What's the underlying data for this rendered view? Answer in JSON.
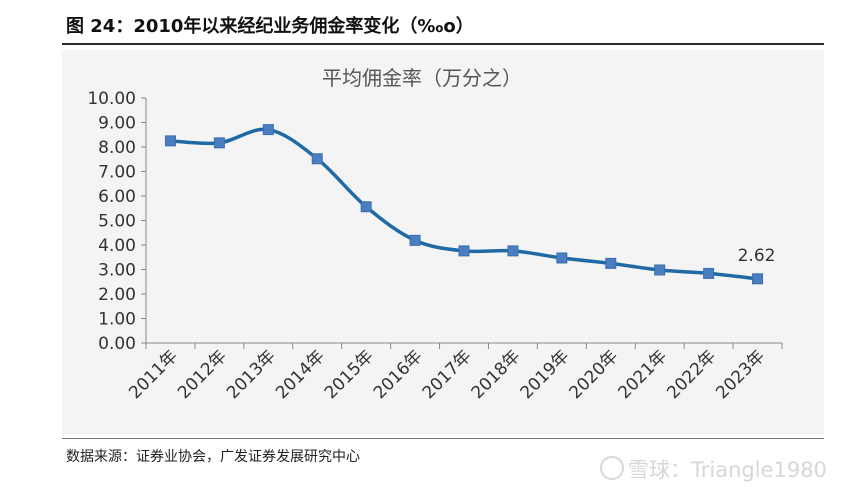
{
  "figure": {
    "title": "图 24：2010年以来经纪业务佣金率变化（‰o）",
    "source": "数据来源：证券业协会，广发证券发展研究中心",
    "watermark": "雪球：Triangle1980"
  },
  "chart_data": {
    "type": "line",
    "title": "平均佣金率（万分之）",
    "categories": [
      "2011年",
      "2012年",
      "2013年",
      "2014年",
      "2015年",
      "2016年",
      "2017年",
      "2018年",
      "2019年",
      "2020年",
      "2021年",
      "2022年",
      "2023年"
    ],
    "series": [
      {
        "values": [
          8.25,
          8.17,
          8.71,
          7.52,
          5.56,
          4.19,
          3.76,
          3.76,
          3.47,
          3.25,
          2.98,
          2.84,
          2.62
        ]
      }
    ],
    "data_labels": [
      {
        "category": "2023年",
        "text": "2.62"
      }
    ],
    "ylim": [
      0,
      10
    ],
    "y_ticks": [
      "0.00",
      "1.00",
      "2.00",
      "3.00",
      "4.00",
      "5.00",
      "6.00",
      "7.00",
      "8.00",
      "9.00",
      "10.00"
    ],
    "grid": false,
    "legend": "none",
    "colors": {
      "line": "#1f6aa5",
      "marker": "#4a7ec1",
      "background": "#f4f4f4"
    }
  }
}
